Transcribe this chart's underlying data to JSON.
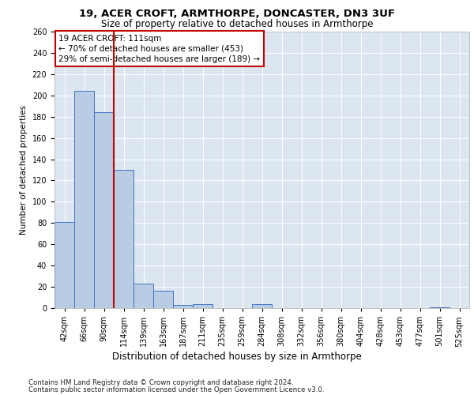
{
  "title1": "19, ACER CROFT, ARMTHORPE, DONCASTER, DN3 3UF",
  "title2": "Size of property relative to detached houses in Armthorpe",
  "xlabel": "Distribution of detached houses by size in Armthorpe",
  "ylabel": "Number of detached properties",
  "categories": [
    "42sqm",
    "66sqm",
    "90sqm",
    "114sqm",
    "139sqm",
    "163sqm",
    "187sqm",
    "211sqm",
    "235sqm",
    "259sqm",
    "284sqm",
    "308sqm",
    "332sqm",
    "356sqm",
    "380sqm",
    "404sqm",
    "428sqm",
    "453sqm",
    "477sqm",
    "501sqm",
    "525sqm"
  ],
  "values": [
    81,
    204,
    184,
    130,
    23,
    16,
    3,
    4,
    0,
    0,
    4,
    0,
    0,
    0,
    0,
    0,
    0,
    0,
    0,
    1,
    0
  ],
  "bar_color": "#b8cce4",
  "bar_edge_color": "#4472c4",
  "vline_idx": 3,
  "vline_color": "#c00000",
  "annotation_line1": "19 ACER CROFT: 111sqm",
  "annotation_line2": "← 70% of detached houses are smaller (453)",
  "annotation_line3": "29% of semi-detached houses are larger (189) →",
  "annotation_box_color": "#ffffff",
  "annotation_box_edge": "#c00000",
  "ylim": [
    0,
    260
  ],
  "yticks": [
    0,
    20,
    40,
    60,
    80,
    100,
    120,
    140,
    160,
    180,
    200,
    220,
    240,
    260
  ],
  "footer1": "Contains HM Land Registry data © Crown copyright and database right 2024.",
  "footer2": "Contains public sector information licensed under the Open Government Licence v3.0.",
  "bg_color": "#dce6f1",
  "title1_fontsize": 9.5,
  "title2_fontsize": 8.5,
  "ylabel_fontsize": 7.5,
  "xlabel_fontsize": 8.5,
  "tick_fontsize": 7,
  "annot_fontsize": 7.5,
  "footer_fontsize": 6.2
}
